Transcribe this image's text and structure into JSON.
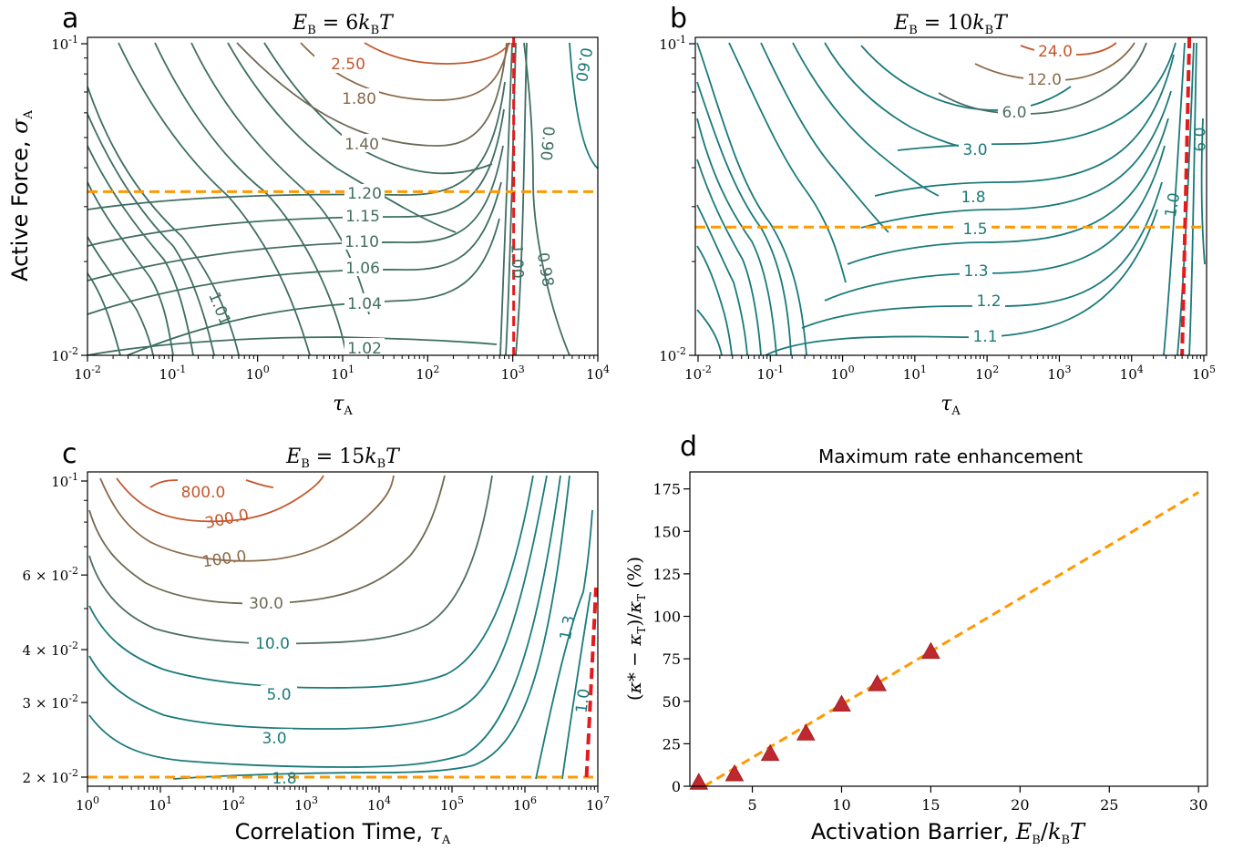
{
  "panels": [
    {
      "letter": "a",
      "title": "E_B = 6k_BT",
      "type": "contour",
      "xaxis": {
        "label": "τ_A",
        "scale": "log",
        "range": [
          0.01,
          10000
        ]
      },
      "yaxis": {
        "label": "Active Force, σ_A",
        "scale": "log",
        "range": [
          0.01,
          0.1
        ]
      },
      "ref_lines": {
        "horizontal_y": 0.0335,
        "vertical_x": 1000
      },
      "contour_levels": [
        "2.50",
        "1.80",
        "1.40",
        "1.20",
        "1.15",
        "1.10",
        "1.06",
        "1.04",
        "1.02",
        "1.01",
        "1.00",
        "0.98",
        "0.90",
        "0.60"
      ]
    },
    {
      "letter": "b",
      "title": "E_B = 10k_BT",
      "type": "contour",
      "xaxis": {
        "label": "τ_A",
        "scale": "log",
        "range": [
          0.01,
          100000
        ]
      },
      "yaxis": {
        "label": "",
        "scale": "log",
        "range": [
          0.01,
          0.1
        ]
      },
      "ref_lines": {
        "horizontal_y": 0.0258,
        "vertical_x": 50000
      },
      "contour_levels": [
        "24.0",
        "12.0",
        "6.0",
        "3.0",
        "1.8",
        "1.5",
        "1.3",
        "1.2",
        "1.1",
        "1.0",
        "0.9"
      ]
    },
    {
      "letter": "c",
      "title": "E_B = 15k_BT",
      "type": "contour",
      "xaxis": {
        "label": "Correlation Time, τ_A",
        "scale": "log",
        "range": [
          1,
          10000000
        ]
      },
      "yaxis": {
        "label": "",
        "scale": "log",
        "range": [
          0.019,
          0.1
        ]
      },
      "ref_lines": {
        "horizontal_y": 0.02,
        "vertical_x": 7000000
      },
      "contour_levels": [
        "800.0",
        "300.0",
        "100.0",
        "30.0",
        "10.0",
        "5.0",
        "3.0",
        "1.8",
        "1.3",
        "1.0"
      ]
    }
  ],
  "chart_data": {
    "type": "scatter",
    "letter": "d",
    "title": "Maximum rate enhancement",
    "xlabel": "Activation Barrier, E_B/k_BT",
    "ylabel": "(κ* − κ_T)/κ_T (%)",
    "xlim": [
      1.5,
      30.5
    ],
    "ylim": [
      0,
      185
    ],
    "x_ticks": [
      5,
      10,
      15,
      20,
      25,
      30
    ],
    "y_ticks": [
      0,
      25,
      50,
      75,
      100,
      125,
      150,
      175
    ],
    "x": [
      2,
      4,
      6,
      8,
      10,
      12,
      15
    ],
    "y": [
      2,
      7,
      19,
      31,
      48,
      60,
      79
    ],
    "fit_line": {
      "x": [
        2.3,
        30
      ],
      "y": [
        0,
        173
      ]
    }
  },
  "colors": {
    "teal": "#1b7a7a",
    "greygreen": "#4c6e62",
    "brown": "#8a6a48",
    "rust": "#c4572c",
    "orange_dashed": "#ff9900",
    "red_dashed": "#e41a1c",
    "marker": "#c0282f"
  }
}
